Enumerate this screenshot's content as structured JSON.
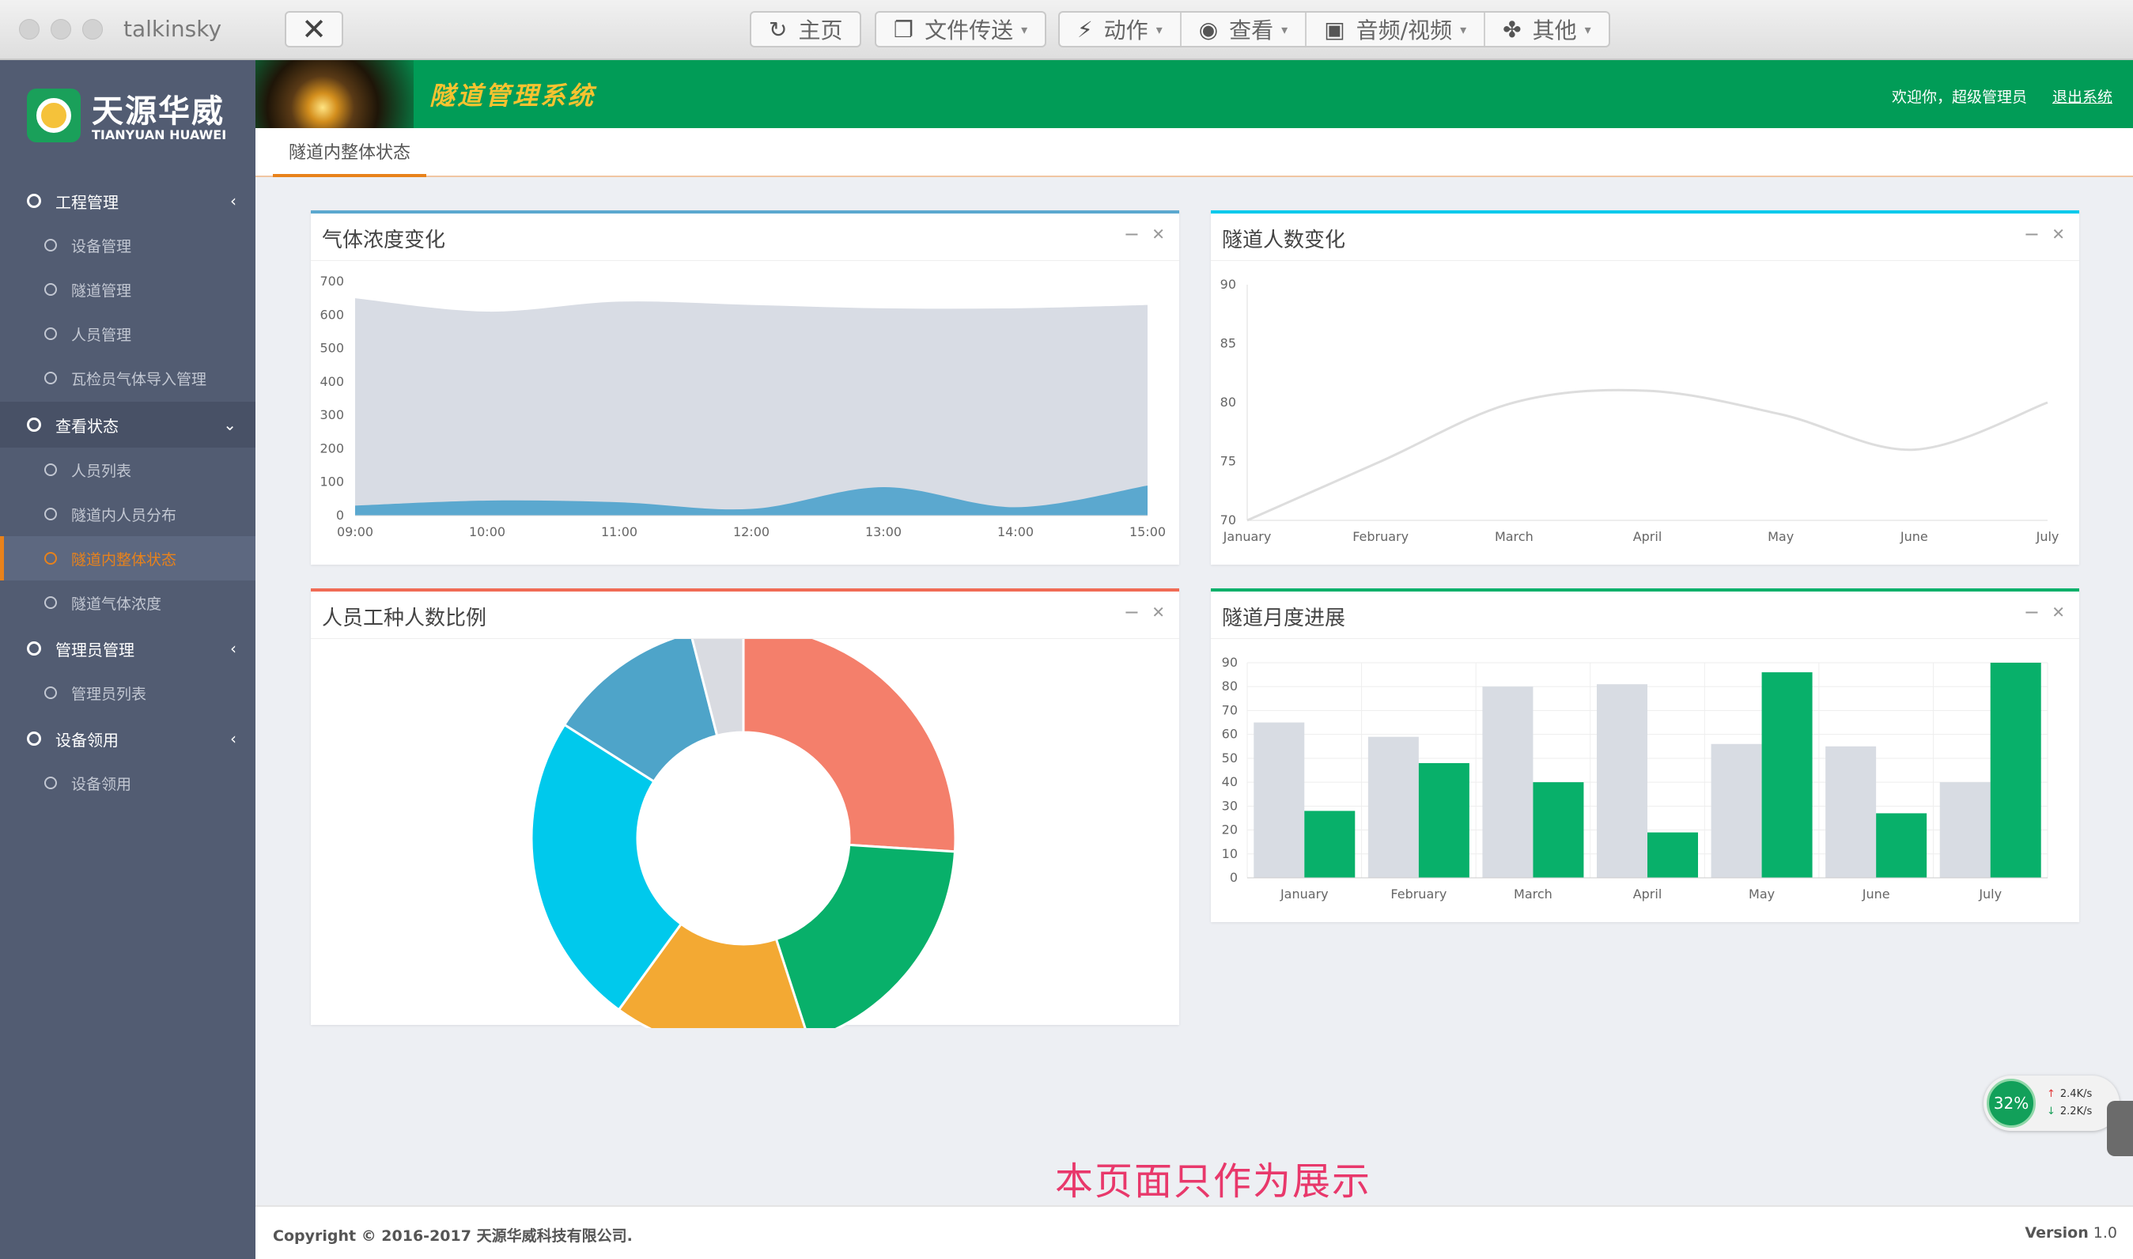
{
  "window": {
    "title": "talkinsky"
  },
  "toolbar": {
    "items": [
      {
        "label": "主页",
        "icon": "home-refresh-icon"
      },
      {
        "label": "文件传送",
        "icon": "copy-files-icon"
      },
      {
        "label": "动作",
        "icon": "lightning-icon"
      },
      {
        "label": "查看",
        "icon": "eye-icon"
      },
      {
        "label": "音频/视频",
        "icon": "chat-bubbles-icon"
      },
      {
        "label": "其他",
        "icon": "puzzle-icon"
      }
    ]
  },
  "brand": {
    "name_cn": "天源华威",
    "name_en": "TIANYUAN HUAWEI"
  },
  "header": {
    "system_title": "隧道管理系统",
    "welcome": "欢迎你，超级管理员",
    "logout": "退出系统"
  },
  "sidebar": {
    "groups": [
      {
        "label": "工程管理",
        "arrow": "‹",
        "children": [
          "设备管理",
          "隧道管理",
          "人员管理",
          "瓦检员气体导入管理"
        ]
      },
      {
        "label": "查看状态",
        "arrow": "⌄",
        "children": [
          "人员列表",
          "隧道内人员分布",
          "隧道内整体状态",
          "隧道气体浓度"
        ]
      },
      {
        "label": "管理员管理",
        "arrow": "‹",
        "children": [
          "管理员列表"
        ]
      },
      {
        "label": "设备领用",
        "arrow": "‹",
        "children": [
          "设备领用"
        ]
      }
    ],
    "active_item": "隧道内整体状态"
  },
  "tabs": {
    "active": "隧道内整体状态"
  },
  "panels": {
    "gas": {
      "title": "气体浓度变化"
    },
    "people": {
      "title": "隧道人数变化"
    },
    "ratio": {
      "title": "人员工种人数比例"
    },
    "progress": {
      "title": "隧道月度进展"
    }
  },
  "chart_data": [
    {
      "type": "area",
      "x": [
        "09:00",
        "10:00",
        "11:00",
        "12:00",
        "13:00",
        "14:00",
        "15:00"
      ],
      "series": [
        {
          "values": [
            650,
            610,
            640,
            630,
            620,
            620,
            630
          ],
          "color": "#d8dce4"
        },
        {
          "values": [
            30,
            45,
            40,
            20,
            85,
            25,
            90
          ],
          "color": "#5ba8cf"
        }
      ],
      "ylim": [
        0,
        700
      ],
      "yticks": [
        0,
        100,
        200,
        300,
        400,
        500,
        600,
        700
      ]
    },
    {
      "type": "line",
      "x": [
        "January",
        "February",
        "March",
        "April",
        "May",
        "June",
        "July"
      ],
      "series": [
        {
          "values": [
            70,
            75,
            80,
            81,
            79,
            76,
            80
          ],
          "color": "#dddddd"
        }
      ],
      "ylim": [
        70,
        90
      ],
      "yticks": [
        70,
        75,
        80,
        85,
        90
      ]
    },
    {
      "type": "pie",
      "donut": true,
      "slices": [
        {
          "value": 26,
          "color": "#f47f6b"
        },
        {
          "value": 19,
          "color": "#08b06a"
        },
        {
          "value": 15,
          "color": "#f3a933"
        },
        {
          "value": 24,
          "color": "#00c9ec"
        },
        {
          "value": 12,
          "color": "#4ea4c9"
        },
        {
          "value": 4,
          "color": "#d9dbe1"
        }
      ]
    },
    {
      "type": "bar",
      "categories": [
        "January",
        "February",
        "March",
        "April",
        "May",
        "June",
        "July"
      ],
      "series": [
        {
          "values": [
            65,
            59,
            80,
            81,
            56,
            55,
            40
          ],
          "color": "#d8dce3"
        },
        {
          "values": [
            28,
            48,
            40,
            19,
            86,
            27,
            90
          ],
          "color": "#08b06a"
        }
      ],
      "ylim": [
        0,
        90
      ],
      "yticks": [
        0,
        10,
        20,
        30,
        40,
        50,
        60,
        70,
        80,
        90
      ],
      "grid": true
    }
  ],
  "demo_note": "本页面只作为展示",
  "footer": {
    "copyright": "Copyright © 2016-2017 天源华威科技有限公司.",
    "version_label": "Version",
    "version_value": "1.0"
  },
  "net_widget": {
    "percent": "32%",
    "up": "2.4K/s",
    "down": "2.2K/s"
  }
}
